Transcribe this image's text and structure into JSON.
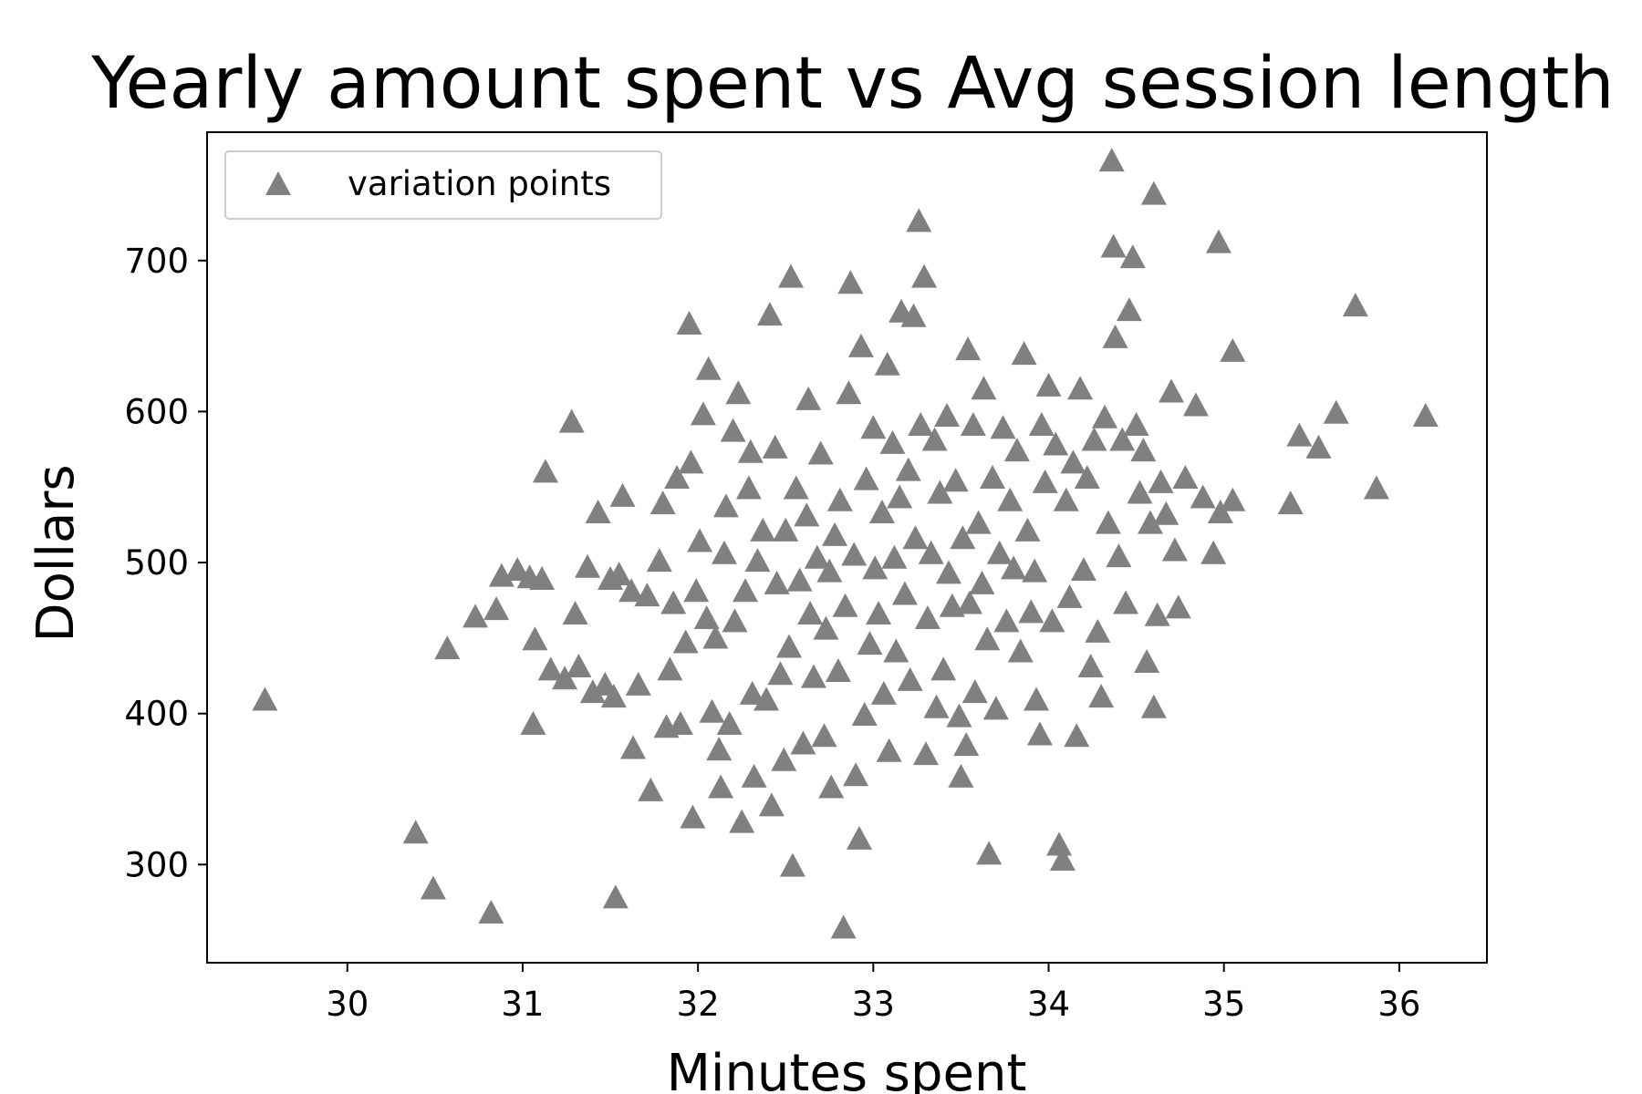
{
  "chart_data": {
    "type": "scatter",
    "title": "Yearly amount spent vs Avg session length",
    "xlabel": "Minutes spent",
    "ylabel": "Dollars",
    "xlim": [
      29.2,
      36.5
    ],
    "ylim": [
      235,
      785
    ],
    "xticks": [
      30,
      31,
      32,
      33,
      34,
      35,
      36
    ],
    "yticks": [
      300,
      400,
      500,
      600,
      700
    ],
    "grid": false,
    "legend_position": "top-left",
    "marker": "triangle",
    "marker_color": "#808080",
    "series": [
      {
        "name": "variation points",
        "color": "#808080",
        "marker": "triangle",
        "points": [
          [
            29.53,
            408
          ],
          [
            30.39,
            320
          ],
          [
            30.49,
            283
          ],
          [
            30.57,
            442
          ],
          [
            30.73,
            463
          ],
          [
            30.82,
            267
          ],
          [
            30.85,
            468
          ],
          [
            30.88,
            490
          ],
          [
            30.97,
            494
          ],
          [
            31.04,
            489
          ],
          [
            31.07,
            448
          ],
          [
            31.06,
            392
          ],
          [
            31.11,
            488
          ],
          [
            31.13,
            559
          ],
          [
            31.16,
            428
          ],
          [
            31.24,
            422
          ],
          [
            31.28,
            592
          ],
          [
            31.3,
            465
          ],
          [
            31.32,
            430
          ],
          [
            31.37,
            496
          ],
          [
            31.4,
            413
          ],
          [
            31.43,
            532
          ],
          [
            31.47,
            418
          ],
          [
            31.5,
            488
          ],
          [
            31.53,
            277
          ],
          [
            31.55,
            491
          ],
          [
            31.57,
            543
          ],
          [
            31.52,
            410
          ],
          [
            31.62,
            480
          ],
          [
            31.63,
            376
          ],
          [
            31.66,
            418
          ],
          [
            31.71,
            477
          ],
          [
            31.73,
            348
          ],
          [
            31.78,
            500
          ],
          [
            31.8,
            538
          ],
          [
            31.82,
            390
          ],
          [
            31.84,
            428
          ],
          [
            31.86,
            472
          ],
          [
            31.88,
            555
          ],
          [
            31.9,
            392
          ],
          [
            31.93,
            446
          ],
          [
            31.95,
            657
          ],
          [
            31.96,
            565
          ],
          [
            31.97,
            330
          ],
          [
            31.99,
            480
          ],
          [
            32.01,
            513
          ],
          [
            32.03,
            597
          ],
          [
            32.05,
            462
          ],
          [
            32.06,
            627
          ],
          [
            32.08,
            400
          ],
          [
            32.1,
            449
          ],
          [
            32.12,
            375
          ],
          [
            32.13,
            350
          ],
          [
            32.15,
            505
          ],
          [
            32.16,
            536
          ],
          [
            32.18,
            392
          ],
          [
            32.2,
            586
          ],
          [
            32.21,
            460
          ],
          [
            32.23,
            611
          ],
          [
            32.25,
            327
          ],
          [
            32.27,
            480
          ],
          [
            32.29,
            548
          ],
          [
            32.3,
            572
          ],
          [
            32.31,
            412
          ],
          [
            32.32,
            357
          ],
          [
            32.34,
            500
          ],
          [
            32.37,
            520
          ],
          [
            32.39,
            408
          ],
          [
            32.41,
            663
          ],
          [
            32.42,
            338
          ],
          [
            32.44,
            575
          ],
          [
            32.45,
            485
          ],
          [
            32.47,
            425
          ],
          [
            32.49,
            368
          ],
          [
            32.5,
            520
          ],
          [
            32.52,
            443
          ],
          [
            32.53,
            688
          ],
          [
            32.54,
            298
          ],
          [
            32.56,
            548
          ],
          [
            32.58,
            487
          ],
          [
            32.6,
            379
          ],
          [
            32.62,
            530
          ],
          [
            32.63,
            607
          ],
          [
            32.64,
            465
          ],
          [
            32.66,
            423
          ],
          [
            32.68,
            502
          ],
          [
            32.7,
            571
          ],
          [
            32.72,
            384
          ],
          [
            32.73,
            455
          ],
          [
            32.75,
            493
          ],
          [
            32.76,
            350
          ],
          [
            32.78,
            517
          ],
          [
            32.8,
            427
          ],
          [
            32.81,
            540
          ],
          [
            32.83,
            257
          ],
          [
            32.84,
            470
          ],
          [
            32.86,
            611
          ],
          [
            32.87,
            684
          ],
          [
            32.89,
            504
          ],
          [
            32.9,
            358
          ],
          [
            32.92,
            316
          ],
          [
            32.93,
            642
          ],
          [
            32.95,
            398
          ],
          [
            32.96,
            554
          ],
          [
            32.98,
            445
          ],
          [
            33.0,
            588
          ],
          [
            33.01,
            495
          ],
          [
            33.03,
            465
          ],
          [
            33.05,
            532
          ],
          [
            33.06,
            412
          ],
          [
            33.08,
            630
          ],
          [
            33.09,
            374
          ],
          [
            33.11,
            578
          ],
          [
            33.12,
            502
          ],
          [
            33.13,
            440
          ],
          [
            33.15,
            542
          ],
          [
            33.16,
            665
          ],
          [
            33.18,
            478
          ],
          [
            33.2,
            560
          ],
          [
            33.21,
            421
          ],
          [
            33.23,
            662
          ],
          [
            33.24,
            515
          ],
          [
            33.26,
            725
          ],
          [
            33.27,
            590
          ],
          [
            33.29,
            688
          ],
          [
            33.3,
            372
          ],
          [
            33.31,
            462
          ],
          [
            33.33,
            505
          ],
          [
            33.35,
            580
          ],
          [
            33.36,
            403
          ],
          [
            33.38,
            545
          ],
          [
            33.4,
            428
          ],
          [
            33.42,
            596
          ],
          [
            33.43,
            492
          ],
          [
            33.45,
            470
          ],
          [
            33.47,
            553
          ],
          [
            33.49,
            397
          ],
          [
            33.5,
            357
          ],
          [
            33.51,
            515
          ],
          [
            33.53,
            378
          ],
          [
            33.54,
            640
          ],
          [
            33.55,
            472
          ],
          [
            33.57,
            590
          ],
          [
            33.58,
            413
          ],
          [
            33.6,
            525
          ],
          [
            33.62,
            485
          ],
          [
            33.63,
            614
          ],
          [
            33.65,
            448
          ],
          [
            33.66,
            306
          ],
          [
            33.68,
            555
          ],
          [
            33.7,
            402
          ],
          [
            33.72,
            505
          ],
          [
            33.74,
            588
          ],
          [
            33.76,
            460
          ],
          [
            33.78,
            540
          ],
          [
            33.8,
            495
          ],
          [
            33.82,
            573
          ],
          [
            33.84,
            440
          ],
          [
            33.86,
            637
          ],
          [
            33.88,
            520
          ],
          [
            33.9,
            466
          ],
          [
            33.92,
            493
          ],
          [
            33.93,
            408
          ],
          [
            33.95,
            385
          ],
          [
            33.96,
            590
          ],
          [
            33.98,
            552
          ],
          [
            34.0,
            616
          ],
          [
            34.02,
            460
          ],
          [
            34.04,
            577
          ],
          [
            34.06,
            312
          ],
          [
            34.08,
            302
          ],
          [
            34.1,
            540
          ],
          [
            34.12,
            476
          ],
          [
            34.14,
            565
          ],
          [
            34.16,
            384
          ],
          [
            34.18,
            614
          ],
          [
            34.2,
            494
          ],
          [
            34.22,
            555
          ],
          [
            34.24,
            430
          ],
          [
            34.26,
            580
          ],
          [
            34.28,
            453
          ],
          [
            34.3,
            410
          ],
          [
            34.32,
            595
          ],
          [
            34.34,
            525
          ],
          [
            34.36,
            765
          ],
          [
            34.37,
            708
          ],
          [
            34.38,
            648
          ],
          [
            34.4,
            503
          ],
          [
            34.42,
            580
          ],
          [
            34.44,
            472
          ],
          [
            34.46,
            666
          ],
          [
            34.48,
            701
          ],
          [
            34.5,
            590
          ],
          [
            34.52,
            545
          ],
          [
            34.54,
            573
          ],
          [
            34.56,
            433
          ],
          [
            34.58,
            525
          ],
          [
            34.6,
            743
          ],
          [
            34.6,
            403
          ],
          [
            34.62,
            464
          ],
          [
            34.64,
            552
          ],
          [
            34.67,
            531
          ],
          [
            34.7,
            612
          ],
          [
            34.72,
            507
          ],
          [
            34.74,
            469
          ],
          [
            34.78,
            555
          ],
          [
            34.84,
            603
          ],
          [
            34.88,
            542
          ],
          [
            34.94,
            505
          ],
          [
            34.98,
            532
          ],
          [
            34.97,
            711
          ],
          [
            35.05,
            540
          ],
          [
            35.05,
            639
          ],
          [
            35.38,
            538
          ],
          [
            35.43,
            583
          ],
          [
            35.54,
            575
          ],
          [
            35.64,
            598
          ],
          [
            35.75,
            669
          ],
          [
            35.87,
            548
          ],
          [
            36.15,
            596
          ]
        ]
      }
    ]
  }
}
